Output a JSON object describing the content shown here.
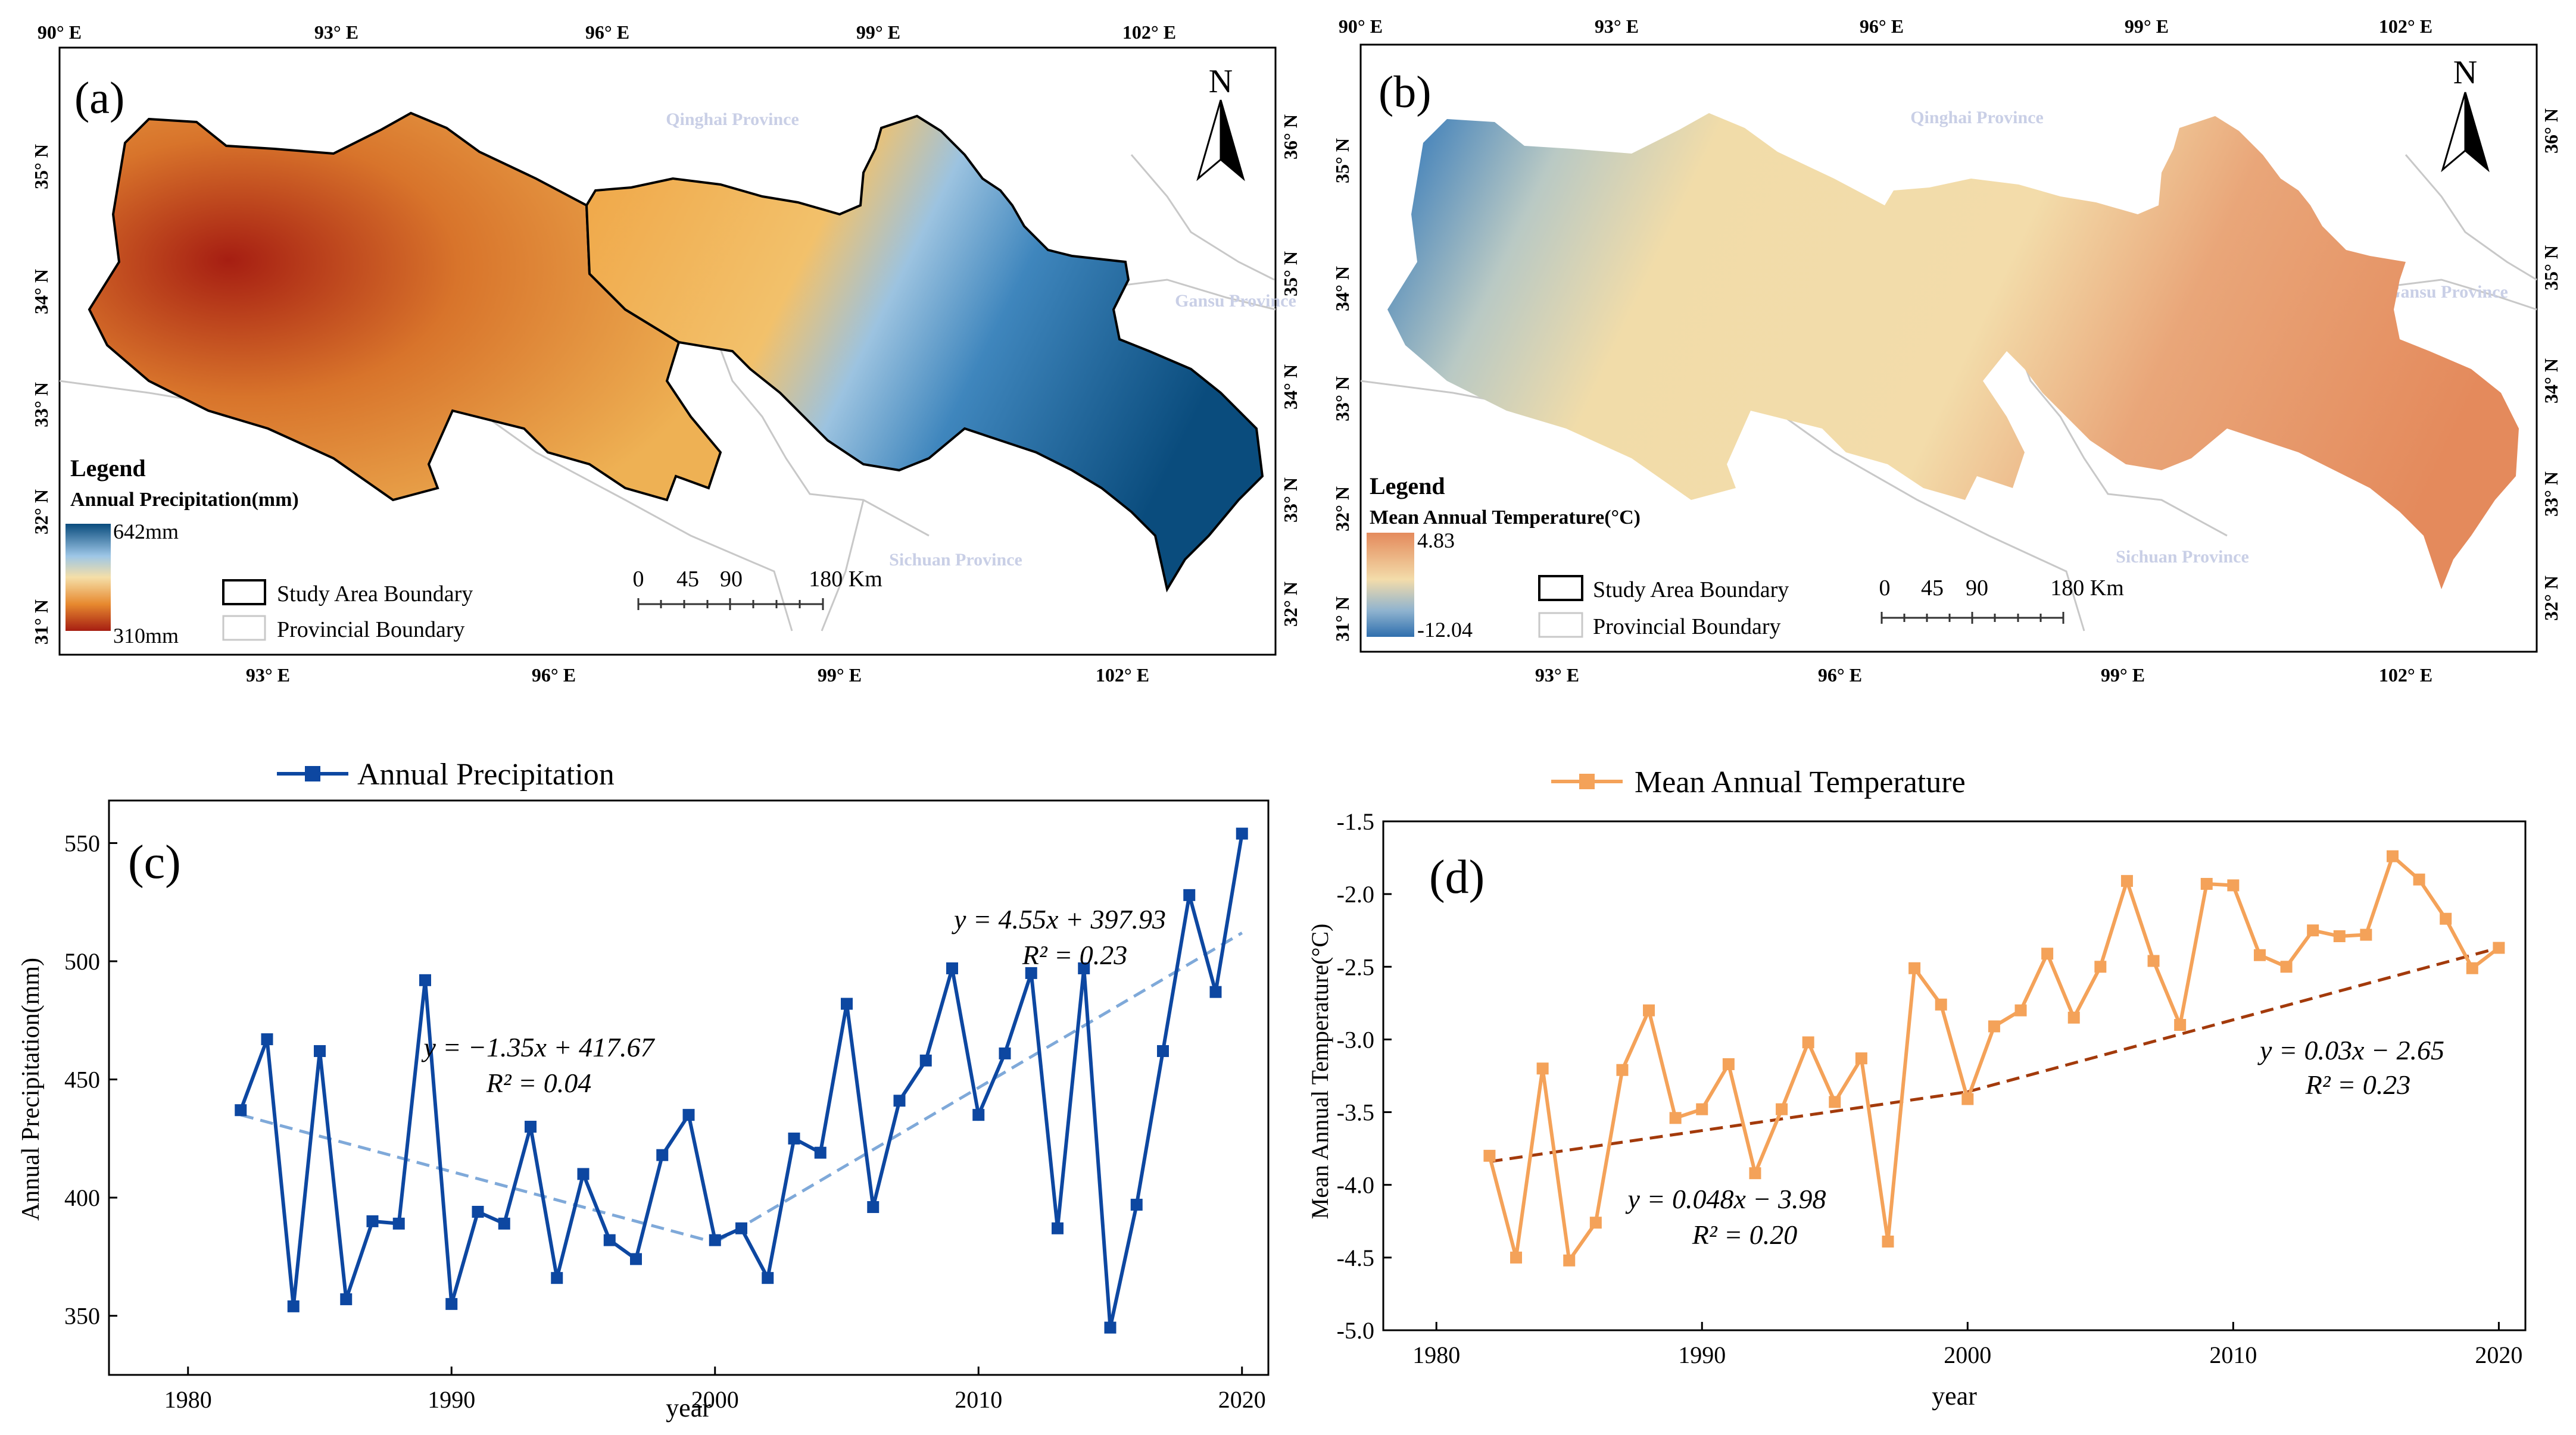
{
  "colors": {
    "precip_series": "#0d47a1",
    "precip_trend": "#7fa9d9",
    "temp_series": "#f4a259",
    "temp_trend": "#a33a0b",
    "precip_high": "#0a4c7d",
    "precip_mid": "#e8b770",
    "precip_low": "#a61e12",
    "temp_high": "#e48a5c",
    "temp_mid": "#f3d7a5",
    "temp_low": "#2f6fae",
    "frame": "#000000",
    "province_line": "#c8c8c8",
    "province_text": "#c9cfe6"
  },
  "maps": [
    {
      "panel_label": "(a)",
      "top_lon_ticks": [
        "90° E",
        "93° E",
        "96° E",
        "99° E",
        "102° E"
      ],
      "bottom_lon_ticks": [
        "93° E",
        "96° E",
        "99° E",
        "102° E"
      ],
      "left_lat_ticks": [
        "35° N",
        "34° N",
        "33° N",
        "32° N",
        "31° N"
      ],
      "right_lat_ticks": [
        "36° N",
        "35° N",
        "34° N",
        "33° N",
        "32° N"
      ],
      "provinces": [
        "Qinghai Province",
        "Gansu Province",
        "Sichuan Province"
      ],
      "north": "N",
      "legend_title": "Legend",
      "legend_subtitle": "Annual Precipitation(mm)",
      "legend_max": "642mm",
      "legend_min": "310mm",
      "boundary_study": "Study Area Boundary",
      "boundary_province": "Provincial Boundary",
      "scale_labels": [
        "0",
        "45",
        "90",
        "180 Km"
      ]
    },
    {
      "panel_label": "(b)",
      "top_lon_ticks": [
        "90° E",
        "93° E",
        "96° E",
        "99° E",
        "102° E"
      ],
      "bottom_lon_ticks": [
        "93° E",
        "96° E",
        "99° E",
        "102° E"
      ],
      "left_lat_ticks": [
        "35° N",
        "34° N",
        "33° N",
        "32° N",
        "31° N"
      ],
      "right_lat_ticks": [
        "36° N",
        "35° N",
        "34° N",
        "33° N",
        "32° N"
      ],
      "provinces": [
        "Qinghai Province",
        "Gansu Province",
        "Sichuan Province"
      ],
      "north": "N",
      "legend_title": "Legend",
      "legend_subtitle": "Mean Annual Temperature(°C)",
      "legend_max": "4.83",
      "legend_min": "-12.04",
      "boundary_study": "Study Area Boundary",
      "boundary_province": "Provincial Boundary",
      "scale_labels": [
        "0",
        "45",
        "90",
        "180 Km"
      ]
    }
  ],
  "chart_data": [
    {
      "type": "line",
      "panel_label": "(c)",
      "legend": "Annual Precipitation",
      "xlabel": "year",
      "ylabel": "Annual Precipitation(mm)",
      "xlim": [
        1977,
        2021
      ],
      "ylim": [
        325,
        568
      ],
      "xticks": [
        1980,
        1990,
        2000,
        2010,
        2020
      ],
      "yticks": [
        350,
        400,
        450,
        500,
        550
      ],
      "x": [
        1982,
        1983,
        1984,
        1985,
        1986,
        1987,
        1988,
        1989,
        1990,
        1991,
        1992,
        1993,
        1994,
        1995,
        1996,
        1997,
        1998,
        1999,
        2000,
        2001,
        2002,
        2003,
        2004,
        2005,
        2006,
        2007,
        2008,
        2009,
        2010,
        2011,
        2012,
        2013,
        2014,
        2015,
        2016,
        2017,
        2018,
        2019,
        2020
      ],
      "values": [
        437,
        467,
        354,
        462,
        357,
        390,
        389,
        492,
        355,
        394,
        389,
        430,
        366,
        410,
        382,
        374,
        418,
        435,
        382,
        387,
        366,
        425,
        419,
        482,
        396,
        441,
        458,
        497,
        435,
        461,
        495,
        387,
        497,
        345,
        397,
        462,
        528,
        487,
        554
      ],
      "trends": [
        {
          "x": [
            1982,
            2000
          ],
          "y": [
            435,
            381
          ],
          "equation": "y = −1.35x + 417.67",
          "r2": "R² = 0.04"
        },
        {
          "x": [
            2000,
            2020
          ],
          "y": [
            381,
            512
          ],
          "equation": "y = 4.55x + 397.93",
          "r2": "R² = 0.23"
        }
      ]
    },
    {
      "type": "line",
      "panel_label": "(d)",
      "legend": "Mean Annual Temperature",
      "xlabel": "year",
      "ylabel": "Mean Annual Temperature(°C)",
      "xlim": [
        1978,
        2021
      ],
      "ylim": [
        -5.0,
        -1.5
      ],
      "xticks": [
        1980,
        1990,
        2000,
        2010,
        2020
      ],
      "yticks": [
        -5.0,
        -4.5,
        -4.0,
        -3.5,
        -3.0,
        -2.5,
        -2.0,
        -1.5
      ],
      "x": [
        1982,
        1983,
        1984,
        1985,
        1986,
        1987,
        1988,
        1989,
        1990,
        1991,
        1992,
        1993,
        1994,
        1995,
        1996,
        1997,
        1998,
        1999,
        2000,
        2001,
        2002,
        2003,
        2004,
        2005,
        2006,
        2007,
        2008,
        2009,
        2010,
        2011,
        2012,
        2013,
        2014,
        2015,
        2016,
        2017,
        2018,
        2019,
        2020
      ],
      "values": [
        -3.8,
        -4.5,
        -3.2,
        -4.52,
        -4.26,
        -3.21,
        -2.8,
        -3.54,
        -3.48,
        -3.17,
        -3.92,
        -3.48,
        -3.02,
        -3.43,
        -3.13,
        -4.39,
        -2.51,
        -2.76,
        -3.41,
        -2.91,
        -2.8,
        -2.41,
        -2.85,
        -2.5,
        -1.91,
        -2.46,
        -2.9,
        -1.93,
        -1.94,
        -2.42,
        -2.5,
        -2.25,
        -2.29,
        -2.28,
        -1.74,
        -1.9,
        -2.17,
        -2.51,
        -2.37
      ],
      "trends": [
        {
          "x": [
            1982,
            2000
          ],
          "y": [
            -3.84,
            -3.36
          ],
          "equation": "y = 0.048x − 3.98",
          "r2": "R² = 0.20"
        },
        {
          "x": [
            2000,
            2020
          ],
          "y": [
            -3.36,
            -2.37
          ],
          "equation": "y = 0.03x − 2.65",
          "r2": "R² = 0.23"
        }
      ]
    }
  ]
}
